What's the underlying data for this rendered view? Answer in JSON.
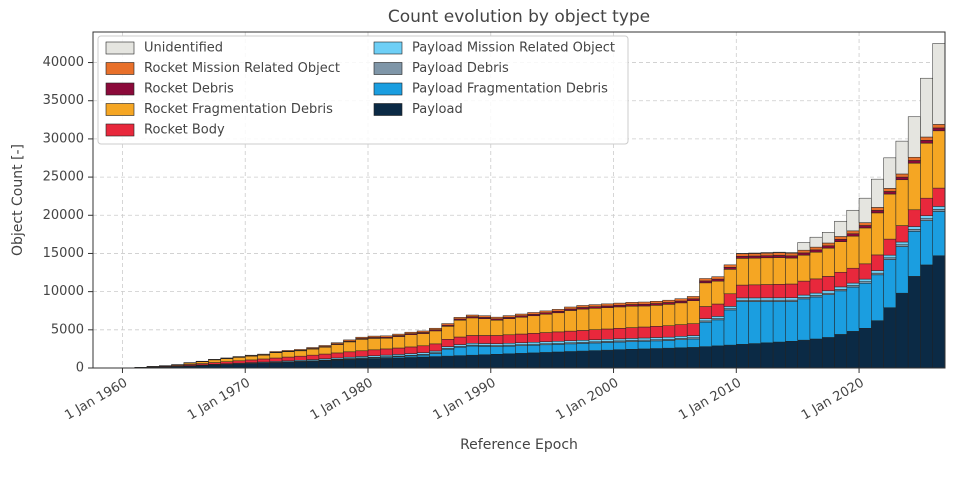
{
  "chart_data": {
    "type": "stacked_bar",
    "title": "Count evolution by object type",
    "x_label": "Reference Epoch",
    "y_label": "Object Count [-]",
    "xlim": [
      1957.6,
      2027
    ],
    "ylim": [
      0,
      44000
    ],
    "xticks": [
      {
        "value": 1960,
        "label": "1 Jan 1960"
      },
      {
        "value": 1970,
        "label": "1 Jan 1970"
      },
      {
        "value": 1980,
        "label": "1 Jan 1980"
      },
      {
        "value": 1990,
        "label": "1 Jan 1990"
      },
      {
        "value": 2000,
        "label": "1 Jan 2000"
      },
      {
        "value": 2010,
        "label": "1 Jan 2010"
      },
      {
        "value": 2020,
        "label": "1 Jan 2020"
      }
    ],
    "yticks": [
      0,
      5000,
      10000,
      15000,
      20000,
      25000,
      30000,
      35000,
      40000
    ],
    "grid": true,
    "legend": "upper left",
    "x": [
      1958,
      1959,
      1960,
      1961,
      1962,
      1963,
      1964,
      1965,
      1966,
      1967,
      1968,
      1969,
      1970,
      1971,
      1972,
      1973,
      1974,
      1975,
      1976,
      1977,
      1978,
      1979,
      1980,
      1981,
      1982,
      1983,
      1984,
      1985,
      1986,
      1987,
      1988,
      1989,
      1990,
      1991,
      1992,
      1993,
      1994,
      1995,
      1996,
      1997,
      1998,
      1999,
      2000,
      2001,
      2002,
      2003,
      2004,
      2005,
      2006,
      2007,
      2008,
      2009,
      2010,
      2011,
      2012,
      2013,
      2014,
      2015,
      2016,
      2017,
      2018,
      2019,
      2020,
      2021,
      2022,
      2023,
      2024,
      2025,
      2026
    ],
    "series": [
      {
        "name": "Payload",
        "color": "#0b2a45",
        "values": [
          2,
          5,
          15,
          40,
          80,
          120,
          180,
          260,
          330,
          400,
          460,
          520,
          580,
          640,
          700,
          760,
          820,
          880,
          950,
          1020,
          1090,
          1150,
          1200,
          1260,
          1320,
          1380,
          1440,
          1500,
          1560,
          1620,
          1680,
          1740,
          1800,
          1860,
          1920,
          1980,
          2040,
          2100,
          2160,
          2220,
          2280,
          2340,
          2400,
          2450,
          2500,
          2550,
          2600,
          2650,
          2700,
          2800,
          2900,
          3000,
          3100,
          3200,
          3300,
          3400,
          3500,
          3650,
          3800,
          4000,
          4400,
          4800,
          5200,
          6200,
          7900,
          9800,
          12000,
          13500,
          14700
        ]
      },
      {
        "name": "Payload Fragmentation Debris",
        "color": "#1b9ee0",
        "values": [
          0,
          0,
          0,
          0,
          0,
          0,
          0,
          0,
          0,
          0,
          0,
          0,
          0,
          0,
          0,
          0,
          0,
          20,
          40,
          60,
          80,
          100,
          120,
          140,
          160,
          200,
          250,
          400,
          900,
          1100,
          1200,
          1100,
          1000,
          1000,
          1000,
          1000,
          1000,
          1000,
          1000,
          1000,
          1000,
          1000,
          1000,
          1000,
          1000,
          1000,
          1000,
          1050,
          1100,
          3200,
          3400,
          4600,
          5600,
          5500,
          5400,
          5300,
          5200,
          5400,
          5500,
          5600,
          5700,
          5800,
          5900,
          6000,
          6300,
          6100,
          5900,
          5800,
          5800
        ]
      },
      {
        "name": "Payload Debris",
        "color": "#7f96a8",
        "values": [
          0,
          0,
          0,
          0,
          0,
          0,
          0,
          5,
          10,
          15,
          20,
          25,
          30,
          35,
          40,
          45,
          50,
          55,
          60,
          65,
          70,
          75,
          80,
          85,
          90,
          95,
          100,
          105,
          110,
          115,
          120,
          125,
          130,
          130,
          135,
          135,
          140,
          140,
          145,
          145,
          150,
          150,
          150,
          155,
          155,
          160,
          160,
          165,
          165,
          170,
          170,
          175,
          180,
          180,
          185,
          185,
          190,
          190,
          195,
          195,
          200,
          200,
          210,
          220,
          230,
          240,
          250,
          260,
          270
        ]
      },
      {
        "name": "Payload Mission Related Object",
        "color": "#6ecff6",
        "values": [
          0,
          0,
          5,
          10,
          20,
          30,
          40,
          50,
          60,
          70,
          80,
          90,
          100,
          110,
          120,
          130,
          140,
          150,
          160,
          170,
          180,
          190,
          200,
          205,
          210,
          215,
          220,
          225,
          230,
          235,
          240,
          245,
          250,
          250,
          255,
          255,
          260,
          260,
          265,
          265,
          270,
          270,
          270,
          275,
          275,
          280,
          280,
          285,
          285,
          290,
          290,
          295,
          300,
          300,
          305,
          305,
          310,
          310,
          315,
          315,
          320,
          320,
          330,
          340,
          350,
          360,
          370,
          380,
          390
        ]
      },
      {
        "name": "Rocket Body",
        "color": "#e8283c",
        "values": [
          2,
          4,
          8,
          30,
          60,
          80,
          110,
          150,
          180,
          230,
          270,
          310,
          350,
          400,
          450,
          500,
          540,
          580,
          620,
          660,
          700,
          740,
          780,
          810,
          840,
          870,
          900,
          930,
          960,
          990,
          1020,
          1050,
          1080,
          1110,
          1140,
          1170,
          1200,
          1230,
          1260,
          1290,
          1320,
          1350,
          1380,
          1410,
          1440,
          1470,
          1500,
          1530,
          1560,
          1590,
          1620,
          1650,
          1680,
          1710,
          1740,
          1770,
          1800,
          1830,
          1860,
          1890,
          1920,
          1950,
          2000,
          2050,
          2100,
          2150,
          2200,
          2300,
          2400
        ]
      },
      {
        "name": "Rocket Fragmentation Debris",
        "color": "#f5a623",
        "values": [
          0,
          0,
          0,
          10,
          30,
          60,
          90,
          200,
          250,
          350,
          400,
          450,
          500,
          500,
          700,
          700,
          700,
          800,
          900,
          1100,
          1300,
          1500,
          1500,
          1400,
          1500,
          1600,
          1600,
          1700,
          1700,
          2200,
          2300,
          2200,
          2000,
          2100,
          2200,
          2300,
          2400,
          2500,
          2700,
          2800,
          2800,
          2800,
          2800,
          2800,
          2750,
          2750,
          2800,
          2850,
          3000,
          3100,
          3000,
          3200,
          3500,
          3500,
          3500,
          3500,
          3400,
          3400,
          3500,
          3700,
          4000,
          4200,
          4700,
          5500,
          5900,
          6000,
          6100,
          7200,
          7500
        ]
      },
      {
        "name": "Rocket Debris",
        "color": "#8b0a3a",
        "values": [
          0,
          0,
          0,
          0,
          5,
          5,
          10,
          15,
          20,
          25,
          30,
          35,
          40,
          45,
          50,
          55,
          60,
          70,
          80,
          90,
          100,
          110,
          120,
          125,
          130,
          135,
          140,
          145,
          150,
          155,
          160,
          165,
          170,
          175,
          180,
          185,
          190,
          195,
          200,
          205,
          210,
          215,
          220,
          225,
          230,
          235,
          240,
          245,
          250,
          255,
          260,
          265,
          270,
          275,
          280,
          285,
          290,
          295,
          300,
          305,
          310,
          315,
          320,
          330,
          340,
          350,
          360,
          370,
          380
        ]
      },
      {
        "name": "Rocket Mission Related Object",
        "color": "#e8702a",
        "values": [
          0,
          0,
          0,
          5,
          10,
          15,
          20,
          30,
          40,
          50,
          60,
          70,
          80,
          90,
          100,
          110,
          120,
          130,
          140,
          150,
          160,
          170,
          180,
          185,
          190,
          195,
          200,
          205,
          210,
          215,
          220,
          225,
          230,
          235,
          240,
          245,
          250,
          255,
          260,
          265,
          270,
          275,
          280,
          285,
          290,
          295,
          300,
          305,
          310,
          315,
          320,
          325,
          330,
          335,
          340,
          345,
          350,
          355,
          360,
          365,
          370,
          375,
          380,
          390,
          400,
          410,
          420,
          440,
          460
        ]
      },
      {
        "name": "Unidentified",
        "color": "#e5e5e0",
        "values": [
          0,
          0,
          0,
          0,
          0,
          0,
          0,
          0,
          0,
          0,
          0,
          0,
          0,
          0,
          0,
          0,
          0,
          0,
          0,
          0,
          0,
          0,
          0,
          0,
          0,
          0,
          0,
          0,
          0,
          0,
          0,
          0,
          0,
          0,
          0,
          0,
          0,
          0,
          0,
          0,
          0,
          0,
          0,
          0,
          0,
          0,
          0,
          0,
          0,
          0,
          0,
          0,
          50,
          60,
          70,
          80,
          100,
          1000,
          1300,
          1400,
          2000,
          2700,
          3200,
          3700,
          4000,
          4300,
          5300,
          7700,
          10600
        ]
      }
    ]
  }
}
